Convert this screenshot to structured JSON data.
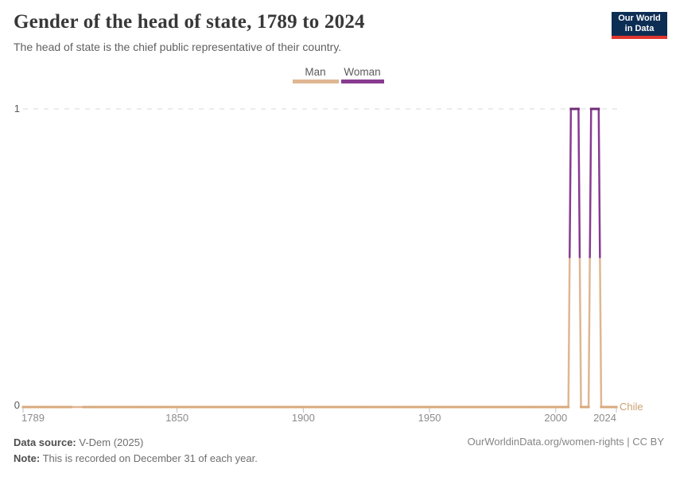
{
  "header": {
    "title": "Gender of the head of state, 1789 to 2024",
    "subtitle": "The head of state is the chief public representative of their country.",
    "logo": {
      "line1": "Our World",
      "line2": "in Data",
      "bg": "#0d2e54",
      "accent": "#e0362e"
    }
  },
  "legend": {
    "items": [
      {
        "label": "Man",
        "color": "#dfb693"
      },
      {
        "label": "Woman",
        "color": "#883b90"
      }
    ]
  },
  "chart_data": {
    "type": "line",
    "title": "Gender of the head of state, 1789 to 2024",
    "entity": "Chile",
    "x_range": [
      1789,
      2024
    ],
    "x_ticks": [
      1789,
      1850,
      1900,
      1950,
      2000,
      2024
    ],
    "y_ticks": [
      0,
      1
    ],
    "ylim": [
      0,
      1
    ],
    "value_labels": {
      "0": "Man",
      "1": "Woman"
    },
    "grid": "dashed line at y=1 only",
    "legend_position": "top-center",
    "series": [
      {
        "name": "Chile",
        "default_value": 0,
        "woman_year_ranges": [
          [
            2006,
            2009
          ],
          [
            2014,
            2017
          ]
        ],
        "marker_gap_years": [
          1809,
          1812
        ]
      }
    ],
    "colors": {
      "man_line": "#dfb693",
      "man_marker": "#d8a87b",
      "woman_line": "#883b90",
      "woman_marker": "#6e2d76",
      "gridline": "#d9d9d9",
      "tick": "#c0c0c0",
      "entity_label": "#c9a173"
    }
  },
  "footer": {
    "source_label": "Data source:",
    "source_value": " V-Dem (2025)",
    "note_label": "Note:",
    "note_value": " This is recorded on December 31 of each year.",
    "rights": "OurWorldinData.org/women-rights | CC BY"
  }
}
